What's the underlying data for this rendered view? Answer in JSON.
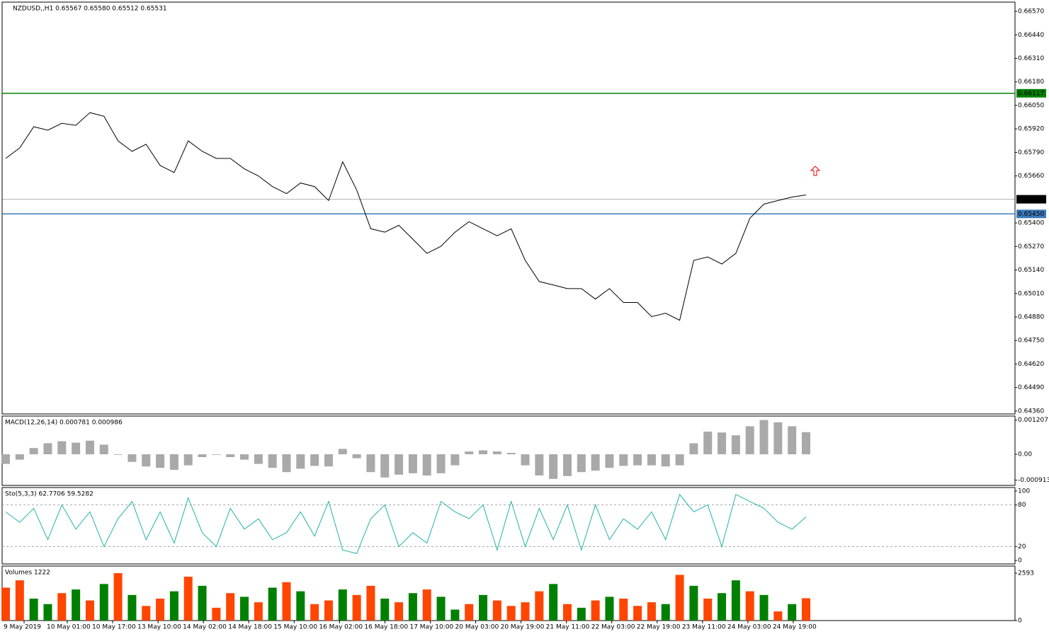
{
  "chart_data": [
    {
      "type": "line",
      "title": "NZDUSD,,H1  0.65567 0.65580 0.65512 0.65531",
      "color": "#000000",
      "values": [
        0.65757,
        0.65815,
        0.65932,
        0.65913,
        0.65951,
        0.6594,
        0.6601,
        0.6599,
        0.65854,
        0.65796,
        0.65835,
        0.65718,
        0.65679,
        0.65854,
        0.65796,
        0.65757,
        0.65757,
        0.65699,
        0.6566,
        0.65601,
        0.65562,
        0.65621,
        0.65601,
        0.65524,
        0.65738,
        0.65582,
        0.65368,
        0.65349,
        0.65387,
        0.6531,
        0.65232,
        0.65271,
        0.65349,
        0.65407,
        0.65368,
        0.65329,
        0.65368,
        0.65193,
        0.65076,
        0.65057,
        0.65037,
        0.65037,
        0.64979,
        0.65037,
        0.6496,
        0.6496,
        0.64882,
        0.64901,
        0.64862,
        0.65193,
        0.65212,
        0.65173,
        0.65232,
        0.65426,
        0.65504,
        0.65524,
        0.65543,
        0.65555
      ],
      "ylim": [
        0.64344,
        0.66621
      ],
      "yticks": [
        {
          "value": 0.6657,
          "label": "0.66570"
        },
        {
          "value": 0.6644,
          "label": "0.66440"
        },
        {
          "value": 0.6631,
          "label": "0.66310"
        },
        {
          "value": 0.6618,
          "label": "0.66180"
        },
        {
          "value": 0.6605,
          "label": "0.66050"
        },
        {
          "value": 0.6592,
          "label": "0.65920"
        },
        {
          "value": 0.6579,
          "label": "0.65790"
        },
        {
          "value": 0.6566,
          "label": "0.65660"
        },
        {
          "value": 0.654,
          "label": "0.65400"
        },
        {
          "value": 0.6527,
          "label": "0.65270"
        },
        {
          "value": 0.6514,
          "label": "0.65140"
        },
        {
          "value": 0.6501,
          "label": "0.65010"
        },
        {
          "value": 0.6488,
          "label": "0.64880"
        },
        {
          "value": 0.6475,
          "label": "0.64750"
        },
        {
          "value": 0.6462,
          "label": "0.64620"
        },
        {
          "value": 0.6449,
          "label": "0.64490"
        },
        {
          "value": 0.6436,
          "label": "0.64360"
        }
      ],
      "levels": [
        {
          "value": 0.66117,
          "label": "0.66117",
          "color": "#008000"
        },
        {
          "value": 0.65531,
          "label": "0.65531",
          "color": "#000000"
        },
        {
          "value": 0.6545,
          "label": "0.65450",
          "color": "#3a7ab8"
        }
      ],
      "x_labels": [
        "9 May 2019",
        "10 May 01:00",
        "10 May 17:00",
        "13 May 10:00",
        "14 May 02:00",
        "14 May 18:00",
        "15 May 10:00",
        "16 May 02:00",
        "16 May 18:00",
        "17 May 10:00",
        "20 May 03:00",
        "20 May 19:00",
        "21 May 11:00",
        "22 May 03:00",
        "22 May 19:00",
        "23 May 11:00",
        "24 May 03:00",
        "24 May 19:00"
      ]
    },
    {
      "type": "bar",
      "title": "MACD(12,26,14) 0.000781 0.000986",
      "color": "#a9a9a9",
      "values": [
        -0.00034,
        -0.00019,
        0.00022,
        0.00039,
        0.00046,
        0.00041,
        0.00048,
        0.00034,
        -2e-05,
        -0.00027,
        -0.00043,
        -0.00048,
        -0.00055,
        -0.00039,
        -0.0001,
        -2e-05,
        -0.0001,
        -0.00019,
        -0.00034,
        -0.00048,
        -0.00063,
        -0.00051,
        -0.00041,
        -0.00043,
        0.00019,
        -0.00014,
        -0.00063,
        -0.00082,
        -0.00072,
        -0.00067,
        -0.00075,
        -0.00067,
        -0.00039,
        0.0001,
        0.00014,
        0.0001,
        5e-05,
        -0.00039,
        -0.00075,
        -0.00087,
        -0.00077,
        -0.00063,
        -0.00058,
        -0.00048,
        -0.00041,
        -0.00039,
        -0.00039,
        -0.00043,
        -0.00039,
        0.00039,
        0.0008,
        0.00077,
        0.00067,
        0.00099,
        0.00121,
        0.00113,
        0.00099,
        0.00078
      ],
      "ylim": [
        -0.0011,
        0.00135
      ],
      "yticks": [
        0.001207,
        {
          "value": 0,
          "label": "0.00"
        },
        -0.000913
      ]
    },
    {
      "type": "line",
      "title": "Sto(5,3,3) 62.7706 59.5282",
      "color": "#20b2aa",
      "values": [
        70,
        55,
        75,
        30,
        80,
        45,
        70,
        20,
        60,
        85,
        30,
        70,
        25,
        90,
        40,
        20,
        75,
        45,
        60,
        30,
        40,
        70,
        35,
        85,
        15,
        10,
        60,
        80,
        20,
        40,
        25,
        85,
        70,
        60,
        80,
        15,
        85,
        20,
        75,
        30,
        80,
        15,
        80,
        30,
        60,
        45,
        70,
        30,
        95,
        70,
        80,
        20,
        95,
        85,
        75,
        55,
        45,
        62.7706
      ],
      "ylim": [
        -5,
        105
      ],
      "yticks": [
        100,
        80,
        20,
        0
      ],
      "levels": [
        80,
        20
      ]
    },
    {
      "type": "bar",
      "title": "Volumes 1222",
      "values": [
        1800,
        2200,
        1200,
        900,
        1500,
        1700,
        1100,
        2000,
        2593,
        1400,
        800,
        1200,
        1600,
        2400,
        1900,
        700,
        1500,
        1300,
        1000,
        1800,
        2100,
        1600,
        900,
        1100,
        1700,
        1400,
        1900,
        1200,
        1000,
        1500,
        1700,
        1300,
        600,
        900,
        1400,
        1100,
        800,
        1000,
        1600,
        2000,
        900,
        700,
        1100,
        1300,
        1200,
        800,
        1000,
        900,
        2500,
        1900,
        1200,
        1500,
        2200,
        1600,
        1400,
        500,
        900,
        1222
      ],
      "colors": [
        "#ff4500",
        "#ff4500",
        "#008000",
        "#008000",
        "#ff4500",
        "#008000",
        "#ff4500",
        "#008000",
        "#ff4500",
        "#008000",
        "#ff4500",
        "#ff4500",
        "#008000",
        "#ff4500",
        "#008000",
        "#ff4500",
        "#ff4500",
        "#008000",
        "#ff4500",
        "#008000",
        "#ff4500",
        "#008000",
        "#ff4500",
        "#ff4500",
        "#008000",
        "#ff4500",
        "#ff4500",
        "#008000",
        "#ff4500",
        "#008000",
        "#ff4500",
        "#008000",
        "#008000",
        "#ff4500",
        "#008000",
        "#ff4500",
        "#ff4500",
        "#ff4500",
        "#ff4500",
        "#008000",
        "#ff4500",
        "#008000",
        "#ff4500",
        "#008000",
        "#ff4500",
        "#ff4500",
        "#ff4500",
        "#008000",
        "#ff4500",
        "#008000",
        "#ff4500",
        "#008000",
        "#008000",
        "#ff4500",
        "#008000",
        "#ff4500",
        "#008000",
        "#ff4500"
      ],
      "ylim": [
        0,
        2980
      ],
      "yticks": [
        2593,
        0
      ]
    }
  ]
}
